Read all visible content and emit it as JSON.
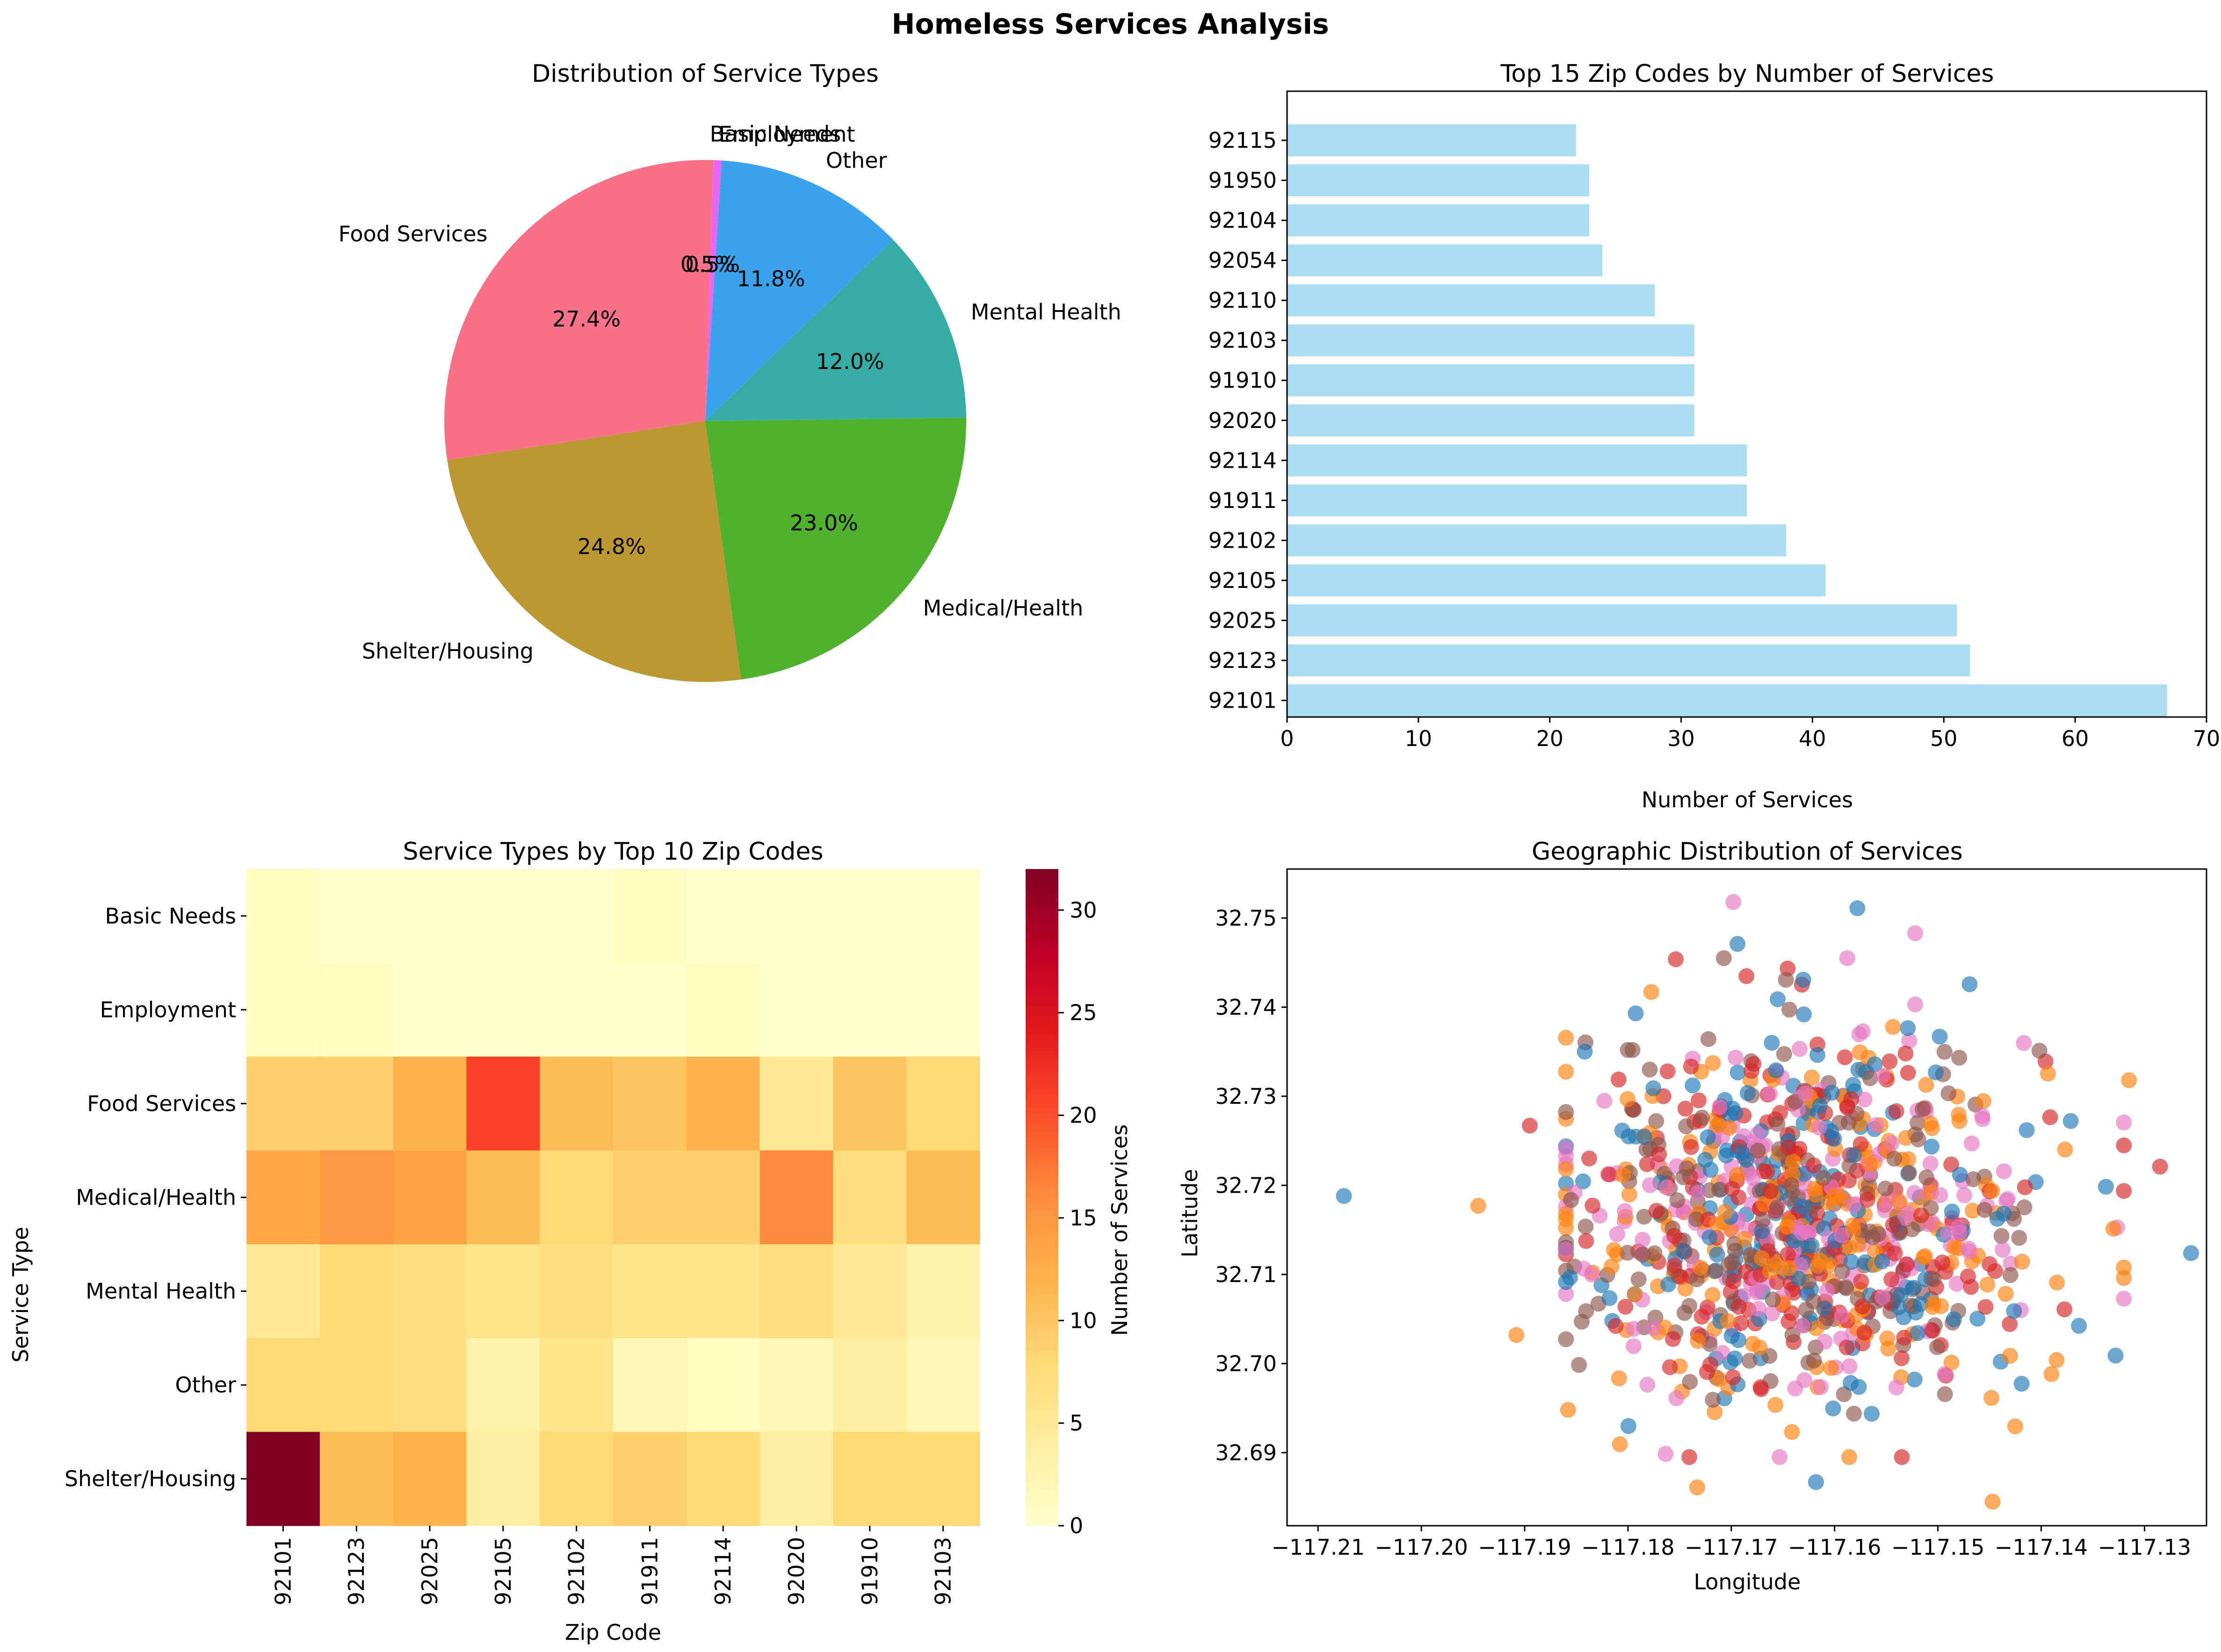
{
  "figure": {
    "suptitle": "Homeless Services Analysis"
  },
  "chart_data": [
    {
      "type": "pie",
      "title": "Distribution of Service Types",
      "slices": [
        {
          "label": "Food Services",
          "value": 27.4,
          "pct_label": "27.4%",
          "color": "#f77189"
        },
        {
          "label": "Shelter/Housing",
          "value": 24.8,
          "pct_label": "24.8%",
          "color": "#bb9832"
        },
        {
          "label": "Medical/Health",
          "value": 23.0,
          "pct_label": "23.0%",
          "color": "#50b131"
        },
        {
          "label": "Mental Health",
          "value": 12.0,
          "pct_label": "12.0%",
          "color": "#36ada4"
        },
        {
          "label": "Other",
          "value": 11.8,
          "pct_label": "11.8%",
          "color": "#3ba3ec"
        },
        {
          "label": "Employment",
          "value": 0.5,
          "pct_label": "0.5%",
          "color": "#e866f4"
        },
        {
          "label": "Basic Needs",
          "value": 0.5,
          "pct_label": "0.5%",
          "color": "#f77189"
        }
      ]
    },
    {
      "type": "bar",
      "orientation": "horizontal",
      "title": "Top 15 Zip Codes by Number of Services",
      "xlabel": "Number of Services",
      "ylabel": "",
      "xlim": [
        0,
        70
      ],
      "xticks": [
        0,
        10,
        20,
        30,
        40,
        50,
        60,
        70
      ],
      "bar_color": "#87ceeb",
      "categories": [
        "92101",
        "92123",
        "92025",
        "92105",
        "92102",
        "91911",
        "92114",
        "92020",
        "91910",
        "92103",
        "92110",
        "92054",
        "92104",
        "91950",
        "92115"
      ],
      "values": [
        67,
        52,
        51,
        41,
        38,
        35,
        35,
        31,
        31,
        31,
        28,
        24,
        23,
        23,
        22
      ]
    },
    {
      "type": "heatmap",
      "title": "Service Types by Top 10 Zip Codes",
      "xlabel": "Zip Code",
      "ylabel": "Service Type",
      "colorbar_label": "Number of Services",
      "colorbar_ticks": [
        0,
        5,
        10,
        15,
        20,
        25,
        30
      ],
      "vmin": 0,
      "vmax": 32,
      "colormap": "YlOrRd",
      "rows": [
        "Basic Needs",
        "Employment",
        "Food Services",
        "Medical/Health",
        "Mental Health",
        "Other",
        "Shelter/Housing"
      ],
      "cols": [
        "92101",
        "92123",
        "92025",
        "92105",
        "92102",
        "91911",
        "92114",
        "92020",
        "91910",
        "92103"
      ],
      "values": [
        [
          1,
          0,
          0,
          0,
          0,
          1,
          0,
          0,
          0,
          0
        ],
        [
          1,
          1,
          0,
          0,
          0,
          0,
          1,
          0,
          0,
          0
        ],
        [
          9,
          9,
          12,
          21,
          11,
          10,
          12,
          5,
          10,
          8
        ],
        [
          13,
          15,
          14,
          11,
          8,
          9,
          9,
          16,
          7,
          11
        ],
        [
          5,
          8,
          7,
          6,
          7,
          6,
          6,
          7,
          5,
          3
        ],
        [
          8,
          8,
          7,
          3,
          6,
          2,
          1,
          2,
          4,
          2
        ],
        [
          32,
          11,
          12,
          4,
          8,
          9,
          8,
          4,
          8,
          8
        ]
      ]
    },
    {
      "type": "scatter",
      "title": "Geographic Distribution of Services",
      "xlabel": "Longitude",
      "ylabel": "Latitude",
      "xlim": [
        -117.213,
        -117.124
      ],
      "ylim": [
        32.6818,
        32.7555
      ],
      "xticks": [
        -117.21,
        -117.2,
        -117.19,
        -117.18,
        -117.17,
        -117.16,
        -117.15,
        -117.14,
        -117.13
      ],
      "xtick_labels": [
        "−117.21",
        "−117.20",
        "−117.19",
        "−117.18",
        "−117.17",
        "−117.16",
        "−117.15",
        "−117.14",
        "−117.13"
      ],
      "yticks": [
        32.69,
        32.7,
        32.71,
        32.72,
        32.73,
        32.74,
        32.75
      ],
      "ytick_labels": [
        "32.69",
        "32.70",
        "32.71",
        "32.72",
        "32.73",
        "32.74",
        "32.75"
      ],
      "point_colors": [
        "#1f77b4",
        "#ff7f0e",
        "#d62728",
        "#e377c2",
        "#8c564b"
      ],
      "point_opacity": 0.65,
      "distribution": {
        "center_lon": -117.163,
        "center_lat": 32.7165,
        "sd_lon": 0.0115,
        "sd_lat": 0.0103,
        "count": 1000
      },
      "notable_points": [
        [
          -117.2075,
          32.7188
        ],
        [
          -117.1945,
          32.7177
        ],
        [
          -117.1908,
          32.7032
        ],
        [
          -117.1895,
          32.7267
        ],
        [
          -117.1255,
          32.7124
        ],
        [
          -117.1285,
          32.7221
        ],
        [
          -117.1315,
          32.7318
        ],
        [
          -117.1698,
          32.7518
        ],
        [
          -117.1578,
          32.7511
        ],
        [
          -117.1522,
          32.7483
        ],
        [
          -117.1694,
          32.7471
        ],
        [
          -117.1447,
          32.6845
        ],
        [
          -117.1733,
          32.6861
        ],
        [
          -117.1618,
          32.6867
        ],
        [
          -117.1858,
          32.6948
        ],
        [
          -117.1328,
          32.7009
        ]
      ]
    }
  ]
}
